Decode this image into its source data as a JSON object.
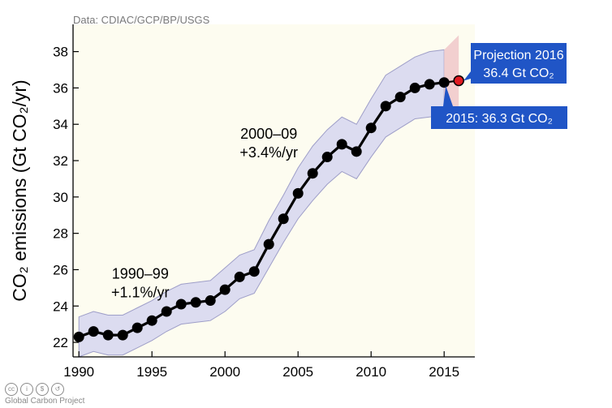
{
  "source": "Data: CDIAC/GCP/BP/USGS",
  "footer": {
    "org": "Global Carbon Project",
    "icons": [
      "cc-icon",
      "by-icon",
      "nc-icon",
      "sa-icon"
    ]
  },
  "chart_data": {
    "type": "line",
    "ylabel": "CO₂ emissions (Gt CO₂/yr)",
    "ylim": [
      21.2,
      39.5
    ],
    "xlim": [
      1989.6,
      2017.1
    ],
    "xticks": [
      1990,
      1995,
      2000,
      2005,
      2010,
      2015
    ],
    "yticks": [
      22,
      24,
      26,
      28,
      30,
      32,
      34,
      36,
      38
    ],
    "grid": false,
    "series": [
      {
        "x": [
          1990,
          1991,
          1992,
          1993,
          1994,
          1995,
          1996,
          1997,
          1998,
          1999,
          2000,
          2001,
          2002,
          2003,
          2004,
          2005,
          2006,
          2007,
          2008,
          2009,
          2010,
          2011,
          2012,
          2013,
          2014,
          2015
        ],
        "values": [
          22.3,
          22.6,
          22.4,
          22.4,
          22.8,
          23.2,
          23.7,
          24.1,
          24.2,
          24.3,
          24.9,
          25.6,
          25.9,
          27.4,
          28.8,
          30.2,
          31.3,
          32.2,
          32.9,
          32.5,
          33.8,
          35.0,
          35.5,
          36.0,
          36.2,
          36.3
        ],
        "upper": [
          23.4,
          23.7,
          23.5,
          23.5,
          23.9,
          24.3,
          24.8,
          25.2,
          25.3,
          25.4,
          26.1,
          26.8,
          27.1,
          28.7,
          30.1,
          31.6,
          32.8,
          33.7,
          34.4,
          34.0,
          35.4,
          36.7,
          37.2,
          37.7,
          38.0,
          38.1
        ],
        "lower": [
          21.2,
          21.5,
          21.3,
          21.3,
          21.7,
          22.1,
          22.6,
          23.0,
          23.1,
          23.2,
          23.7,
          24.4,
          24.7,
          26.1,
          27.5,
          28.8,
          29.8,
          30.7,
          31.4,
          31.0,
          32.2,
          33.3,
          33.8,
          34.3,
          34.4,
          34.5
        ]
      }
    ],
    "projection": {
      "x": 2016,
      "value": 36.4,
      "upper": 38.9,
      "lower": 34.4,
      "color": "#e11b22"
    },
    "annotations": [
      {
        "id": "decade-1990s",
        "lines": [
          "1990–99",
          "+1.1%/yr"
        ],
        "x": 1994.2,
        "y": 25.5
      },
      {
        "id": "decade-2000s",
        "lines": [
          "2000–09",
          "+3.4%/yr"
        ],
        "x": 2003.0,
        "y": 33.2
      }
    ],
    "callouts": [
      {
        "id": "callout-projection",
        "lines": [
          "Projection 2016",
          "36.4 Gt CO₂"
        ]
      },
      {
        "id": "callout-2015",
        "lines": [
          "2015: 36.3 Gt CO₂"
        ]
      }
    ],
    "colors": {
      "plot_bg": "#fdfcf0",
      "band": "#dcdcf0",
      "band_stroke": "#9e9ec8",
      "proj_band": "#f2cfcf",
      "line": "#000000",
      "callout": "#2055c6"
    }
  }
}
